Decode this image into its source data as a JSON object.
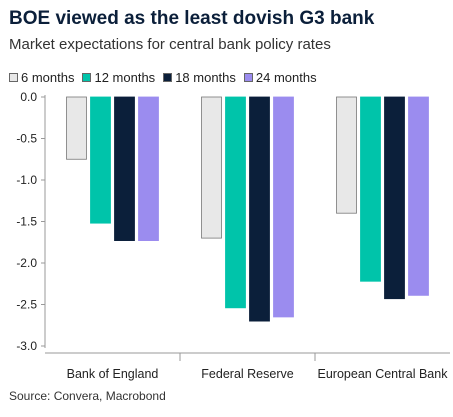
{
  "header": {
    "title": "BOE viewed as the least dovish G3 bank",
    "subtitle": "Market expectations for central bank policy rates"
  },
  "source": "Source: Convera, Macrobond",
  "chart_data": {
    "type": "bar",
    "categories": [
      "Bank of England",
      "Federal Reserve",
      "European Central Bank"
    ],
    "series": [
      {
        "name": "6 months",
        "color": "#e8e8e8",
        "values": [
          -0.75,
          -1.7,
          -1.4
        ]
      },
      {
        "name": "12 months",
        "color": "#00c4aa",
        "values": [
          -1.52,
          -2.54,
          -2.22
        ]
      },
      {
        "name": "18 months",
        "color": "#0b1f3a",
        "values": [
          -1.73,
          -2.7,
          -2.43
        ]
      },
      {
        "name": "24 months",
        "color": "#9b8cef",
        "values": [
          -1.73,
          -2.65,
          -2.39
        ]
      }
    ],
    "ylim": [
      -3.0,
      0.0
    ],
    "yticks": [
      "0.0",
      "-0.5",
      "-1.0",
      "-1.5",
      "-2.0",
      "-2.5",
      "-3.0"
    ],
    "ytick_values": [
      0.0,
      -0.5,
      -1.0,
      -1.5,
      -2.0,
      -2.5,
      -3.0
    ],
    "legend": "top-left",
    "grid": false,
    "xlabel": "",
    "ylabel": ""
  }
}
